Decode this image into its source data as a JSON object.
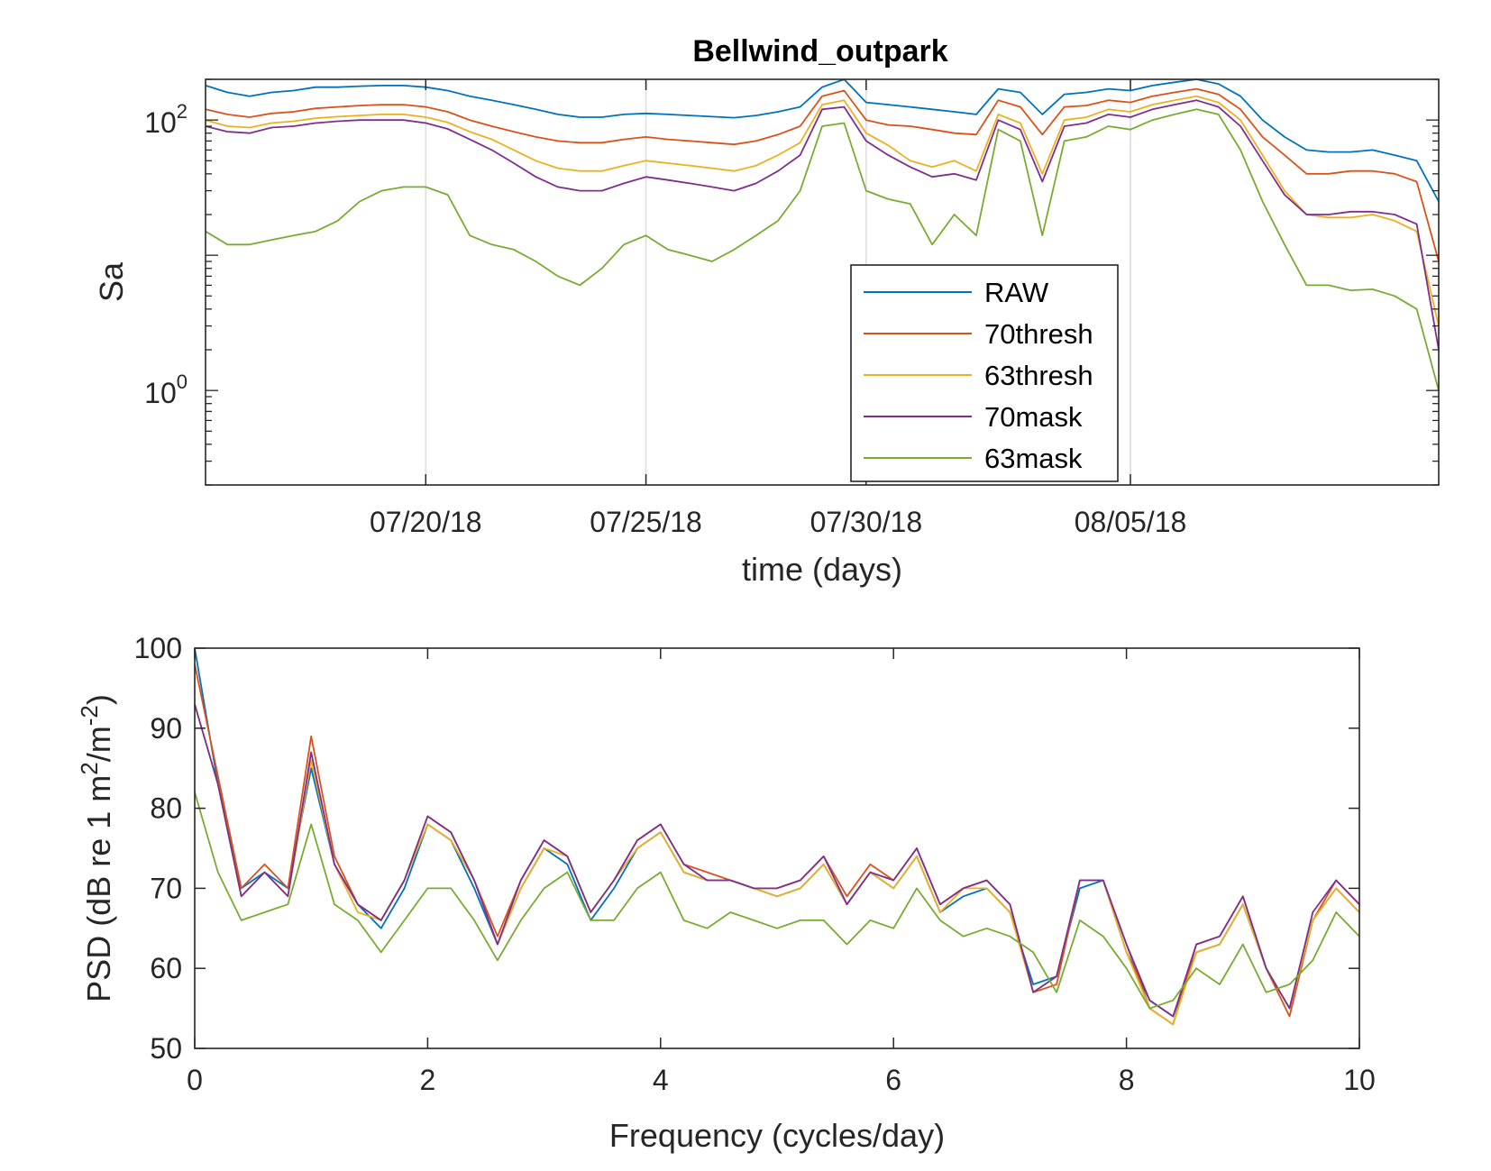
{
  "chart_data": [
    {
      "type": "line",
      "title": "Bellwind_outpark",
      "xlabel": "time (days)",
      "ylabel": "Sa",
      "yscale": "log",
      "x_tick_labels": [
        "07/20/18",
        "07/25/18",
        "07/30/18",
        "08/05/18"
      ],
      "y_tick_labels": [
        {
          "base": "10",
          "exp": "0",
          "value": 1
        },
        {
          "base": "10",
          "exp": "2",
          "value": 100
        }
      ],
      "x_range_days": [
        15,
        43
      ],
      "x_tick_days": [
        20,
        25,
        30,
        36
      ],
      "ylim": [
        0.2,
        200
      ],
      "grid": "vertical",
      "legend_position": "lower-right",
      "x_days": [
        15,
        15.5,
        16,
        16.5,
        17,
        17.5,
        18,
        18.5,
        19,
        19.5,
        20,
        20.5,
        21,
        21.5,
        22,
        22.5,
        23,
        23.5,
        24,
        24.5,
        25,
        25.5,
        26,
        26.5,
        27,
        27.5,
        28,
        28.5,
        29,
        29.5,
        30,
        30.5,
        31,
        31.5,
        32,
        32.5,
        33,
        33.5,
        34,
        34.5,
        35,
        35.5,
        36,
        36.5,
        37,
        37.5,
        38,
        38.5,
        39,
        39.5,
        40,
        40.5,
        41,
        41.5,
        42,
        42.5,
        43
      ],
      "series": [
        {
          "name": "RAW",
          "color": "#0072BD",
          "values": [
            180,
            160,
            150,
            160,
            165,
            175,
            175,
            178,
            180,
            180,
            175,
            165,
            150,
            140,
            130,
            120,
            110,
            105,
            105,
            110,
            112,
            110,
            108,
            106,
            104,
            108,
            115,
            125,
            175,
            200,
            135,
            130,
            125,
            120,
            115,
            110,
            170,
            160,
            110,
            155,
            160,
            170,
            165,
            180,
            190,
            200,
            185,
            150,
            100,
            75,
            60,
            58,
            58,
            60,
            55,
            50,
            25
          ]
        },
        {
          "name": "70thresh",
          "color": "#D95319",
          "values": [
            120,
            110,
            105,
            112,
            115,
            122,
            125,
            128,
            130,
            130,
            125,
            115,
            100,
            90,
            82,
            75,
            70,
            68,
            68,
            72,
            75,
            72,
            70,
            68,
            66,
            70,
            78,
            90,
            150,
            165,
            100,
            92,
            90,
            85,
            80,
            78,
            140,
            125,
            78,
            125,
            128,
            140,
            135,
            150,
            160,
            170,
            155,
            120,
            75,
            55,
            40,
            40,
            42,
            42,
            40,
            35,
            9
          ]
        },
        {
          "name": "63thresh",
          "color": "#EDB120",
          "values": [
            100,
            90,
            88,
            95,
            98,
            103,
            106,
            108,
            110,
            110,
            105,
            96,
            82,
            72,
            60,
            50,
            44,
            42,
            42,
            46,
            50,
            48,
            46,
            44,
            42,
            46,
            55,
            68,
            130,
            140,
            80,
            65,
            50,
            45,
            50,
            42,
            110,
            95,
            40,
            100,
            105,
            120,
            115,
            130,
            140,
            150,
            135,
            100,
            55,
            30,
            20,
            19,
            19,
            20,
            18,
            15,
            3
          ]
        },
        {
          "name": "70mask",
          "color": "#7E2F8E",
          "values": [
            90,
            82,
            80,
            88,
            90,
            95,
            98,
            100,
            100,
            100,
            95,
            86,
            72,
            60,
            48,
            38,
            32,
            30,
            30,
            34,
            38,
            36,
            34,
            32,
            30,
            34,
            42,
            55,
            120,
            125,
            70,
            55,
            45,
            38,
            40,
            36,
            100,
            85,
            35,
            90,
            95,
            110,
            105,
            120,
            130,
            140,
            125,
            90,
            50,
            28,
            20,
            20,
            21,
            21,
            20,
            17,
            2
          ]
        },
        {
          "name": "63mask",
          "color": "#77AC30",
          "values": [
            15,
            12,
            12,
            13,
            14,
            15,
            18,
            25,
            30,
            32,
            32,
            28,
            14,
            12,
            11,
            9,
            7,
            6,
            8,
            12,
            14,
            11,
            10,
            9,
            11,
            14,
            18,
            30,
            90,
            95,
            30,
            26,
            24,
            12,
            20,
            14,
            85,
            70,
            14,
            70,
            75,
            90,
            85,
            100,
            110,
            120,
            110,
            60,
            25,
            12,
            6,
            6,
            5.5,
            5.6,
            5,
            4,
            1
          ]
        }
      ]
    },
    {
      "type": "line",
      "xlabel": "Frequency (cycles/day)",
      "ylabel": "PSD (dB re 1 m²/m⁻²)",
      "ylabel_parts": {
        "before": "PSD (dB re 1 m",
        "sup1": "2",
        "middle": "/m",
        "sup2": "-2",
        "after": ")"
      },
      "xlim": [
        0,
        10
      ],
      "ylim": [
        50,
        100
      ],
      "x_ticks": [
        0,
        2,
        4,
        6,
        8,
        10
      ],
      "y_ticks": [
        50,
        60,
        70,
        80,
        90,
        100
      ],
      "grid": false,
      "x": [
        0,
        0.2,
        0.4,
        0.6,
        0.8,
        1.0,
        1.2,
        1.4,
        1.6,
        1.8,
        2.0,
        2.2,
        2.4,
        2.6,
        2.8,
        3.0,
        3.2,
        3.4,
        3.6,
        3.8,
        4.0,
        4.2,
        4.4,
        4.6,
        4.8,
        5.0,
        5.2,
        5.4,
        5.6,
        5.8,
        6.0,
        6.2,
        6.4,
        6.6,
        6.8,
        7.0,
        7.2,
        7.4,
        7.6,
        7.8,
        8.0,
        8.2,
        8.4,
        8.6,
        8.8,
        9.0,
        9.2,
        9.4,
        9.6,
        9.8,
        10.0
      ],
      "series": [
        {
          "name": "RAW",
          "color": "#0072BD",
          "values": [
            100,
            83,
            70,
            72,
            70,
            85,
            73,
            68,
            65,
            70,
            78,
            76,
            70,
            63,
            70,
            75,
            73,
            66,
            70,
            75,
            77,
            72,
            71,
            71,
            70,
            69,
            70,
            73,
            68,
            72,
            70,
            74,
            67,
            69,
            70,
            67,
            58,
            59,
            70,
            71,
            62,
            56,
            54,
            62,
            63,
            68,
            60,
            55,
            66,
            70,
            67
          ]
        },
        {
          "name": "70thresh",
          "color": "#D95319",
          "values": [
            98,
            84,
            70,
            73,
            70,
            89,
            74,
            68,
            66,
            71,
            79,
            77,
            71,
            64,
            71,
            76,
            74,
            67,
            71,
            76,
            78,
            73,
            72,
            71,
            70,
            70,
            71,
            74,
            69,
            73,
            71,
            75,
            68,
            70,
            71,
            68,
            57,
            58,
            71,
            71,
            63,
            55,
            53,
            63,
            64,
            69,
            60,
            54,
            66,
            71,
            68
          ]
        },
        {
          "name": "63thresh",
          "color": "#EDB120",
          "values": [
            93,
            83,
            69,
            72,
            69,
            86,
            73,
            67,
            66,
            71,
            78,
            76,
            71,
            63,
            70,
            75,
            74,
            67,
            71,
            75,
            77,
            72,
            71,
            71,
            70,
            69,
            70,
            73,
            68,
            72,
            70,
            74,
            67,
            70,
            70,
            67,
            57,
            59,
            71,
            71,
            62,
            55,
            53,
            62,
            63,
            68,
            60,
            55,
            66,
            70,
            67
          ]
        },
        {
          "name": "70mask",
          "color": "#7E2F8E",
          "values": [
            93,
            83,
            69,
            72,
            69,
            87,
            73,
            68,
            66,
            71,
            79,
            77,
            71,
            63,
            71,
            76,
            74,
            67,
            71,
            76,
            78,
            73,
            71,
            71,
            70,
            70,
            71,
            74,
            68,
            72,
            71,
            75,
            68,
            70,
            71,
            68,
            57,
            59,
            71,
            71,
            63,
            56,
            54,
            63,
            64,
            69,
            60,
            55,
            67,
            71,
            68
          ]
        },
        {
          "name": "63mask",
          "color": "#77AC30",
          "values": [
            82,
            72,
            66,
            67,
            68,
            78,
            68,
            66,
            62,
            66,
            70,
            70,
            66,
            61,
            66,
            70,
            72,
            66,
            66,
            70,
            72,
            66,
            65,
            67,
            66,
            65,
            66,
            66,
            63,
            66,
            65,
            70,
            66,
            64,
            65,
            64,
            62,
            57,
            66,
            64,
            60,
            55,
            56,
            60,
            58,
            63,
            57,
            58,
            61,
            67,
            64
          ]
        }
      ]
    }
  ]
}
